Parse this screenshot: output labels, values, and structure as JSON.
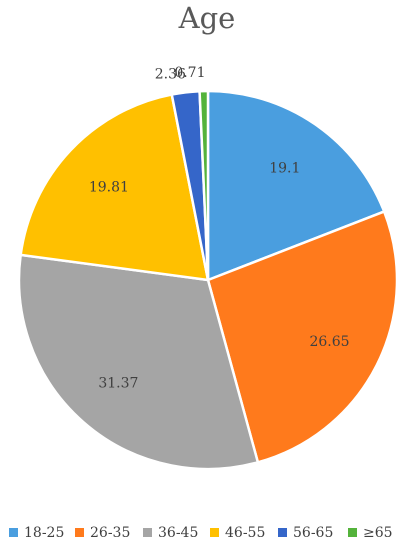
{
  "chart_data": {
    "type": "pie",
    "title": "Age",
    "categories": [
      "18-25",
      "26-35",
      "36-45",
      "46-55",
      "56-65",
      "≥65"
    ],
    "values": [
      19.1,
      26.65,
      31.37,
      19.81,
      2.36,
      0.71
    ],
    "data_labels": [
      "19.1",
      "26.65",
      "31.37",
      "19.81",
      "2.36",
      "0.71"
    ],
    "colors": [
      "#4a9edf",
      "#ff7a1c",
      "#a5a5a5",
      "#ffc000",
      "#3566c9",
      "#54b33b"
    ],
    "legend_position": "bottom",
    "start_angle": "12 o'clock",
    "direction": "clockwise"
  }
}
